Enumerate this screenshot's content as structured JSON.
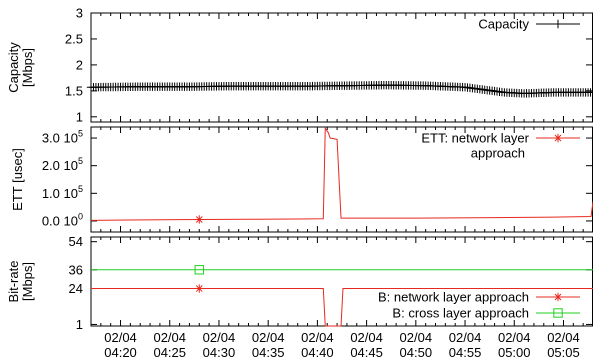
{
  "chart_data": [
    {
      "type": "line",
      "ylabel": [
        "Capacity",
        "[Mbps]"
      ],
      "ylim": [
        0.9,
        3
      ],
      "yticks": [
        {
          "value": 1,
          "label": "1"
        },
        {
          "value": 1.5,
          "label": "1.5"
        },
        {
          "value": 2,
          "label": "2"
        },
        {
          "value": 2.5,
          "label": "2.5"
        },
        {
          "value": 3,
          "label": "3"
        }
      ],
      "legend": "top-right",
      "series": [
        {
          "name": "Capacity",
          "color": "#000000",
          "marker": "plus",
          "points": [
            [
              "04:17",
              1.57
            ],
            [
              "04:22",
              1.58
            ],
            [
              "04:27",
              1.58
            ],
            [
              "04:31",
              1.59
            ],
            [
              "04:35",
              1.59
            ],
            [
              "04:39",
              1.59
            ],
            [
              "04:43",
              1.6
            ],
            [
              "04:47",
              1.61
            ],
            [
              "04:51",
              1.6
            ],
            [
              "04:55",
              1.57
            ],
            [
              "04:59",
              1.47
            ],
            [
              "05:01",
              1.45
            ],
            [
              "05:04",
              1.47
            ],
            [
              "05:08",
              1.47
            ]
          ]
        }
      ]
    },
    {
      "type": "line",
      "ylabel": [
        "ETT [usec]"
      ],
      "ylim": [
        -40000,
        340000
      ],
      "yticks": [
        {
          "value": 0,
          "base": "0.0 10",
          "exp": "0"
        },
        {
          "value": 100000,
          "base": "1.0 10",
          "exp": "5"
        },
        {
          "value": 200000,
          "base": "2.0 10",
          "exp": "5"
        },
        {
          "value": 300000,
          "base": "3.0 10",
          "exp": "5"
        }
      ],
      "legend": "top-right",
      "series": [
        {
          "name": "ETT: network layer approach",
          "legend_lines": [
            "ETT: network layer",
            "approach"
          ],
          "color": "#e8281e",
          "marker": "star",
          "marker_at": [
            "04:28"
          ],
          "points": [
            [
              "04:17",
              2000
            ],
            [
              "04:26",
              5000
            ],
            [
              "04:33",
              6000
            ],
            [
              "04:38",
              7000
            ],
            [
              "04:40.6",
              8000
            ],
            [
              "04:40.8",
              335000
            ],
            [
              "04:41.1",
              320000
            ],
            [
              "04:41.3",
              300000
            ],
            [
              "04:42.0",
              295000
            ],
            [
              "04:42.4",
              10000
            ],
            [
              "04:50",
              10000
            ],
            [
              "04:58",
              12000
            ],
            [
              "05:04",
              14000
            ],
            [
              "05:07.8",
              16000
            ],
            [
              "05:08",
              70000
            ]
          ]
        }
      ]
    },
    {
      "type": "line",
      "ylabel": [
        "Bit-rate",
        "[Mbps]"
      ],
      "ylim": [
        0,
        57
      ],
      "yticks": [
        {
          "value": 1,
          "label": "1"
        },
        {
          "value": 24,
          "label": "24"
        },
        {
          "value": 36,
          "label": "36"
        },
        {
          "value": 54,
          "label": "54"
        }
      ],
      "legend": "bottom-right",
      "series": [
        {
          "name": "B: network layer approach",
          "color": "#e8281e",
          "marker": "star",
          "marker_at": [
            "04:28"
          ],
          "points": [
            [
              "04:17",
              24
            ],
            [
              "04:40.6",
              24
            ],
            [
              "04:40.8",
              0
            ],
            [
              "04:42.4",
              0
            ],
            [
              "04:42.6",
              24
            ],
            [
              "05:08",
              24
            ]
          ]
        },
        {
          "name": "B: cross layer approach",
          "color": "#1fd11f",
          "marker": "square",
          "marker_at": [
            "04:28"
          ],
          "points": [
            [
              "04:17",
              36
            ],
            [
              "05:08",
              36
            ]
          ]
        }
      ]
    }
  ],
  "x_axis": {
    "range": [
      "04:17",
      "05:08"
    ],
    "minor_step_minutes": 1,
    "ticks": [
      {
        "at": "04:20",
        "date": "02/04",
        "time": "04:20"
      },
      {
        "at": "04:25",
        "date": "02/04",
        "time": "04:25"
      },
      {
        "at": "04:30",
        "date": "02/04",
        "time": "04:30"
      },
      {
        "at": "04:35",
        "date": "02/04",
        "time": "04:35"
      },
      {
        "at": "04:40",
        "date": "02/04",
        "time": "04:40"
      },
      {
        "at": "04:45",
        "date": "02/04",
        "time": "04:45"
      },
      {
        "at": "04:50",
        "date": "02/04",
        "time": "04:50"
      },
      {
        "at": "04:55",
        "date": "02/04",
        "time": "04:55"
      },
      {
        "at": "05:00",
        "date": "02/04",
        "time": "05:00"
      },
      {
        "at": "05:05",
        "date": "02/04",
        "time": "05:05"
      }
    ]
  }
}
